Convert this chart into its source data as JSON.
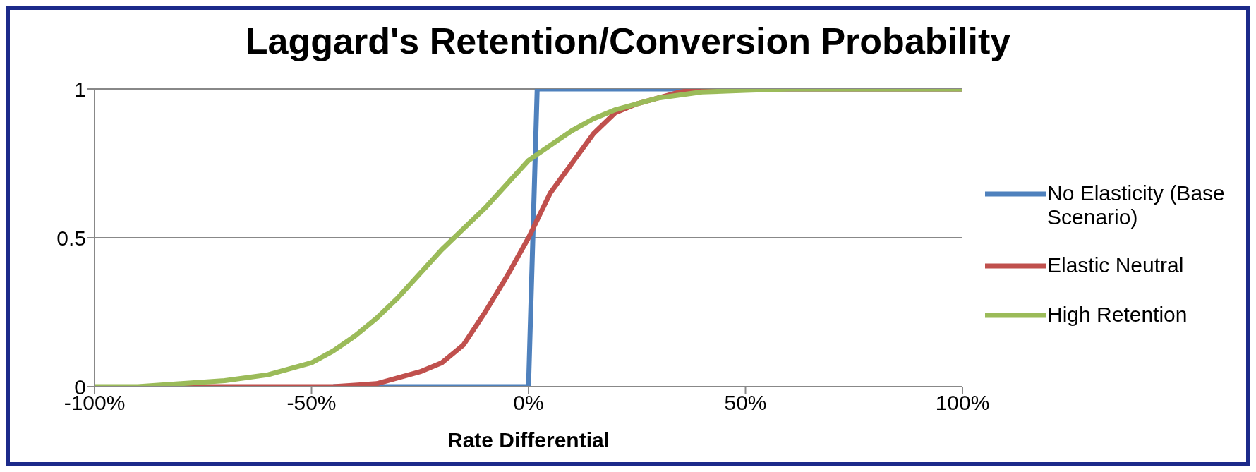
{
  "chart_data": {
    "type": "line",
    "title": "Laggard's Retention/Conversion Probability",
    "xlabel": "Rate Differential",
    "xlim": [
      -100,
      100
    ],
    "xticks": [
      {
        "value": -100,
        "label": "-100%"
      },
      {
        "value": -50,
        "label": "-50%"
      },
      {
        "value": 0,
        "label": "0%"
      },
      {
        "value": 50,
        "label": "50%"
      },
      {
        "value": 100,
        "label": "100%"
      }
    ],
    "ylim": [
      0,
      1
    ],
    "yticks": [
      0,
      0.5,
      1
    ],
    "grid": "y",
    "legend": "right",
    "marker": "none",
    "line_style": "solid",
    "series": [
      {
        "name": "No Elasticity (Base Scenario)",
        "color": "#4f81bd",
        "x": [
          -45,
          -20,
          0,
          2,
          20,
          50,
          100
        ],
        "values": [
          0,
          0,
          0,
          1,
          1,
          1,
          1
        ]
      },
      {
        "name": "Elastic Neutral",
        "color": "#c0504d",
        "x": [
          -80,
          -60,
          -45,
          -35,
          -30,
          -25,
          -20,
          -15,
          -10,
          -5,
          0,
          5,
          10,
          15,
          20,
          25,
          30,
          35,
          40,
          50,
          100
        ],
        "values": [
          0,
          0,
          0,
          0.01,
          0.03,
          0.05,
          0.08,
          0.14,
          0.25,
          0.37,
          0.5,
          0.65,
          0.75,
          0.85,
          0.92,
          0.95,
          0.97,
          0.99,
          1,
          1,
          1
        ]
      },
      {
        "name": "High Retention",
        "color": "#9bbb59",
        "x": [
          -100,
          -90,
          -80,
          -70,
          -60,
          -50,
          -45,
          -40,
          -35,
          -30,
          -25,
          -20,
          -15,
          -10,
          -5,
          0,
          5,
          10,
          15,
          20,
          25,
          30,
          40,
          50,
          60,
          100
        ],
        "values": [
          0,
          0,
          0.01,
          0.02,
          0.04,
          0.08,
          0.12,
          0.17,
          0.23,
          0.3,
          0.38,
          0.46,
          0.53,
          0.6,
          0.68,
          0.76,
          0.81,
          0.86,
          0.9,
          0.93,
          0.95,
          0.97,
          0.99,
          0.995,
          1,
          1
        ]
      }
    ]
  }
}
